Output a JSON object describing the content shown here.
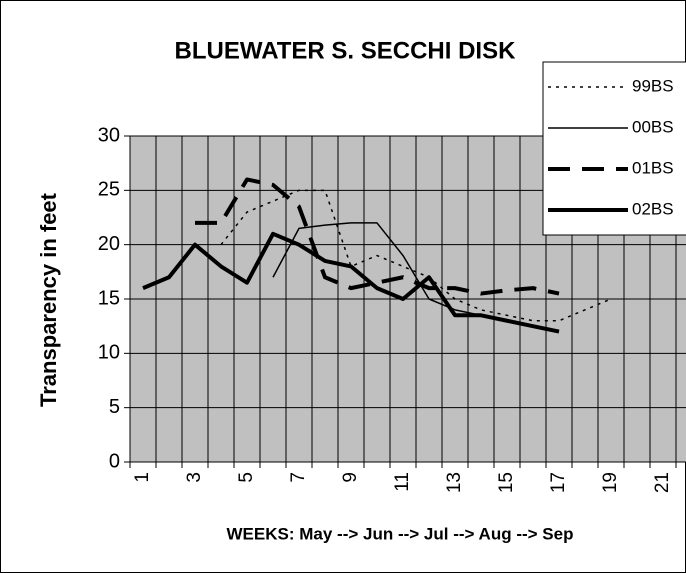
{
  "chart_data": {
    "type": "line",
    "title": "BLUEWATER S. SECCHI DISK",
    "x_label": "WEEKS:  May --> Jun --> Jul --> Aug --> Sep",
    "y_label": "Transparency in feet",
    "categories": [
      "1",
      null,
      "3",
      null,
      "5",
      null,
      "7",
      null,
      "9",
      null,
      "11",
      null,
      "13",
      null,
      "15",
      null,
      "17",
      null,
      "19",
      null,
      "21",
      null
    ],
    "ylim": [
      0,
      30
    ],
    "yticks": [
      0,
      5,
      10,
      15,
      20,
      25,
      30
    ],
    "grid": true,
    "legend": "top-right",
    "series": [
      {
        "name": "99BS",
        "color": "#000000",
        "line_style": "dotted",
        "line_width": 1.5,
        "values": [
          null,
          null,
          null,
          20,
          23,
          24,
          25,
          25,
          18,
          19,
          18,
          17,
          15,
          14,
          13.5,
          13,
          13,
          14,
          15,
          null,
          null,
          null
        ]
      },
      {
        "name": "00BS",
        "color": "#000000",
        "line_style": "solid",
        "line_width": 1.5,
        "values": [
          null,
          null,
          null,
          null,
          null,
          17,
          21.5,
          21.8,
          22,
          22,
          19,
          15,
          14,
          13.5,
          13,
          12.5,
          12,
          null,
          null,
          null,
          null,
          null
        ]
      },
      {
        "name": "01BS",
        "color": "#000000",
        "line_style": "dashed",
        "line_width": 4,
        "values": [
          null,
          null,
          22,
          22,
          26,
          25.5,
          23.5,
          17,
          16,
          16.5,
          17,
          16,
          16,
          15.5,
          15.8,
          16,
          15.5,
          null,
          null,
          null,
          null,
          null
        ]
      },
      {
        "name": "02BS",
        "color": "#000000",
        "line_style": "solid",
        "line_width": 4,
        "values": [
          16,
          17,
          20,
          18,
          16.5,
          21,
          20,
          18.5,
          18,
          16,
          15,
          17,
          13.5,
          13.5,
          13,
          12.5,
          12,
          null,
          null,
          null,
          null,
          null
        ]
      }
    ]
  }
}
